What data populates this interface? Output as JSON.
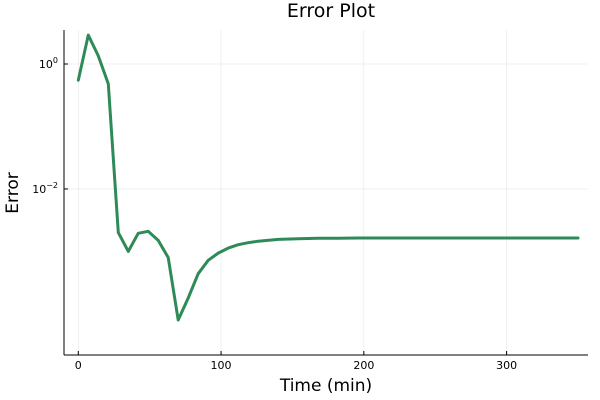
{
  "chart_data": {
    "type": "line",
    "title": "Error Plot",
    "xlabel": "Time (min)",
    "ylabel": "Error",
    "x_scale": "linear",
    "y_scale": "log10",
    "xlim": [
      -10,
      357
    ],
    "ylim": [
      2.2e-05,
      3.5
    ],
    "x_ticks": [
      0,
      100,
      200,
      300
    ],
    "x_tick_labels": [
      "0",
      "100",
      "200",
      "300"
    ],
    "y_ticks": [
      {
        "value": 1,
        "base": "10",
        "exp": "0"
      },
      {
        "value": 0.01,
        "base": "10",
        "exp": "−2"
      }
    ],
    "grid": true,
    "legend": "none",
    "series": [
      {
        "color": "#2e8b57",
        "x": [
          0,
          7,
          14,
          21,
          28,
          35,
          42,
          49,
          56,
          63,
          70,
          77,
          84,
          91,
          98,
          105,
          112,
          119,
          126,
          140,
          154,
          168,
          182,
          196,
          210,
          240,
          270,
          300,
          330,
          350
        ],
        "y": [
          0.55,
          2.9,
          1.35,
          0.48,
          0.002,
          0.001,
          0.00195,
          0.0021,
          0.0015,
          0.0008,
          8e-05,
          0.00018,
          0.00044,
          0.00072,
          0.00094,
          0.00113,
          0.00128,
          0.00138,
          0.00146,
          0.00156,
          0.0016,
          0.00162,
          0.00163,
          0.00164,
          0.00164,
          0.00164,
          0.00164,
          0.00164,
          0.00164,
          0.00164
        ]
      }
    ]
  }
}
